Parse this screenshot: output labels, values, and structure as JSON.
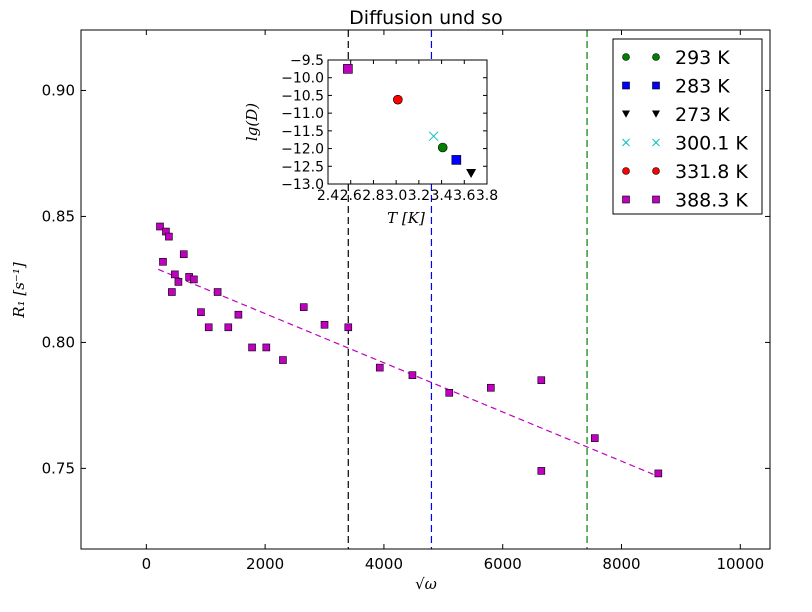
{
  "chart_data": [
    {
      "type": "scatter",
      "title": "Diffusion und so",
      "xlabel": "√ω",
      "ylabel": "R₁ [s⁻¹]",
      "xlim": [
        -1100,
        10500
      ],
      "ylim": [
        0.718,
        0.924
      ],
      "x_ticks": [
        0,
        2000,
        4000,
        6000,
        8000,
        10000
      ],
      "y_ticks": [
        0.75,
        0.8,
        0.85,
        0.9
      ],
      "x_tick_labels": [
        "0",
        "2000",
        "4000",
        "6000",
        "8000",
        "10000"
      ],
      "y_tick_labels": [
        "0.75",
        "0.80",
        "0.85",
        "0.90"
      ],
      "grid": false,
      "legend_position": "top-right",
      "legend": [
        {
          "label": "293 K",
          "marker": "circle",
          "color": "#008000"
        },
        {
          "label": "283 K",
          "marker": "square",
          "color": "#0000ff"
        },
        {
          "label": "273 K",
          "marker": "triangle-down",
          "color": "#000000"
        },
        {
          "label": "300.1 K",
          "marker": "x",
          "color": "#00bfbf"
        },
        {
          "label": "331.8 K",
          "marker": "circle",
          "color": "#ff0000"
        },
        {
          "label": "388.3 K",
          "marker": "square",
          "color": "#bf00bf"
        }
      ],
      "series": [
        {
          "name": "388.3 K",
          "marker": "square",
          "color": "#bf00bf",
          "points": [
            [
              230,
              0.846
            ],
            [
              280,
              0.832
            ],
            [
              330,
              0.844
            ],
            [
              380,
              0.842
            ],
            [
              430,
              0.82
            ],
            [
              480,
              0.827
            ],
            [
              540,
              0.824
            ],
            [
              630,
              0.835
            ],
            [
              720,
              0.826
            ],
            [
              800,
              0.825
            ],
            [
              920,
              0.812
            ],
            [
              1050,
              0.806
            ],
            [
              1200,
              0.82
            ],
            [
              1380,
              0.806
            ],
            [
              1550,
              0.811
            ],
            [
              1780,
              0.798
            ],
            [
              2020,
              0.798
            ],
            [
              2300,
              0.793
            ],
            [
              2650,
              0.814
            ],
            [
              3000,
              0.807
            ],
            [
              3400,
              0.806
            ],
            [
              3930,
              0.79
            ],
            [
              4480,
              0.787
            ],
            [
              5100,
              0.78
            ],
            [
              5800,
              0.782
            ],
            [
              6650,
              0.785
            ],
            [
              6650,
              0.749
            ],
            [
              7550,
              0.762
            ],
            [
              8620,
              0.748
            ]
          ],
          "fit_line": {
            "x": [
              200,
              8600
            ],
            "y": [
              0.829,
              0.747
            ],
            "style": "dashed"
          }
        }
      ],
      "vertical_lines": [
        {
          "x": 3400,
          "color": "#000000",
          "style": "dashed"
        },
        {
          "x": 4800,
          "color": "#0000ff",
          "style": "dashed"
        },
        {
          "x": 7420,
          "color": "#008000",
          "style": "dashed"
        }
      ]
    },
    {
      "type": "scatter",
      "role": "inset",
      "title": "",
      "xlabel": "T [K]",
      "ylabel": "lg(D)",
      "xlim": [
        2.4,
        3.8
      ],
      "ylim": [
        -13.0,
        -9.5
      ],
      "x_ticks": [
        2.4,
        2.6,
        2.8,
        3.0,
        3.2,
        3.4,
        3.6,
        3.8
      ],
      "y_ticks": [
        -13.0,
        -12.5,
        -12.0,
        -11.5,
        -11.0,
        -10.5,
        -10.0,
        -9.5
      ],
      "x_tick_labels": [
        "2.4",
        "2.6",
        "2.8",
        "3.0",
        "3.2",
        "3.4",
        "3.6",
        "3.8"
      ],
      "y_tick_labels": [
        "−13.0",
        "−12.5",
        "−12.0",
        "−11.5",
        "−11.0",
        "−10.5",
        "−10.0",
        "−9.5"
      ],
      "series": [
        {
          "name": "388.3 K",
          "marker": "square",
          "color": "#bf00bf",
          "x": 2.575,
          "y": -9.75
        },
        {
          "name": "331.8 K",
          "marker": "circle",
          "color": "#ff0000",
          "x": 3.015,
          "y": -10.62
        },
        {
          "name": "300.1 K",
          "marker": "x",
          "color": "#00bfbf",
          "x": 3.33,
          "y": -11.65
        },
        {
          "name": "293 K",
          "marker": "circle",
          "color": "#008000",
          "x": 3.41,
          "y": -11.97
        },
        {
          "name": "283 K",
          "marker": "square",
          "color": "#0000ff",
          "x": 3.53,
          "y": -12.32
        },
        {
          "name": "273 K",
          "marker": "triangle-down",
          "color": "#000000",
          "x": 3.66,
          "y": -12.7
        }
      ]
    }
  ]
}
